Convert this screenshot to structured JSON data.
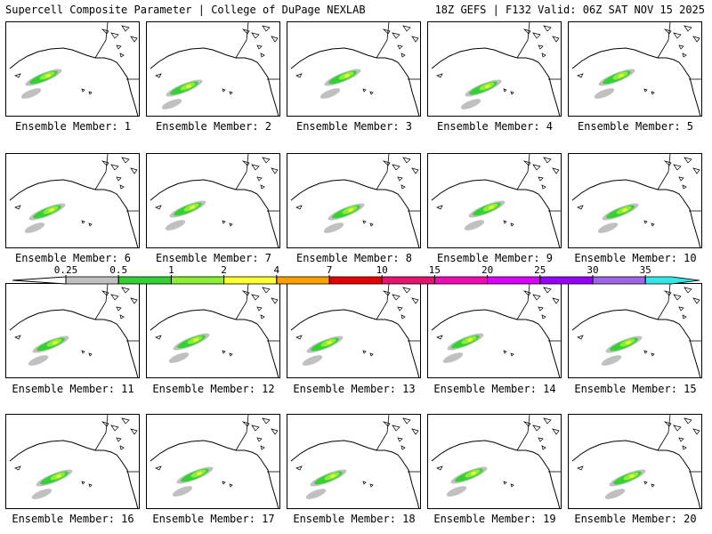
{
  "header": {
    "left_title": "Supercell Composite Parameter | College of DuPage NEXLAB",
    "right_title": "18Z GEFS | F132 Valid: 06Z SAT NOV 15 2025"
  },
  "members": [
    {
      "label": "Ensemble Member: 1"
    },
    {
      "label": "Ensemble Member: 2"
    },
    {
      "label": "Ensemble Member: 3"
    },
    {
      "label": "Ensemble Member: 4"
    },
    {
      "label": "Ensemble Member: 5"
    },
    {
      "label": "Ensemble Member: 6"
    },
    {
      "label": "Ensemble Member: 7"
    },
    {
      "label": "Ensemble Member: 8"
    },
    {
      "label": "Ensemble Member: 9"
    },
    {
      "label": "Ensemble Member: 10"
    },
    {
      "label": "Ensemble Member: 11"
    },
    {
      "label": "Ensemble Member: 12"
    },
    {
      "label": "Ensemble Member: 13"
    },
    {
      "label": "Ensemble Member: 14"
    },
    {
      "label": "Ensemble Member: 15"
    },
    {
      "label": "Ensemble Member: 16"
    },
    {
      "label": "Ensemble Member: 17"
    },
    {
      "label": "Ensemble Member: 18"
    },
    {
      "label": "Ensemble Member: 19"
    },
    {
      "label": "Ensemble Member: 20"
    }
  ],
  "legend": {
    "ticks": [
      "0.25",
      "0.5",
      "1",
      "2",
      "4",
      "7",
      "10",
      "15",
      "20",
      "25",
      "30",
      "35"
    ],
    "colors": [
      "#c0c0c0",
      "#32d232",
      "#8cf032",
      "#ffff32",
      "#ffa000",
      "#e60000",
      "#e6146e",
      "#f00ab4",
      "#dc00ff",
      "#9600ff",
      "#a064e6",
      "#32e6e6"
    ]
  }
}
